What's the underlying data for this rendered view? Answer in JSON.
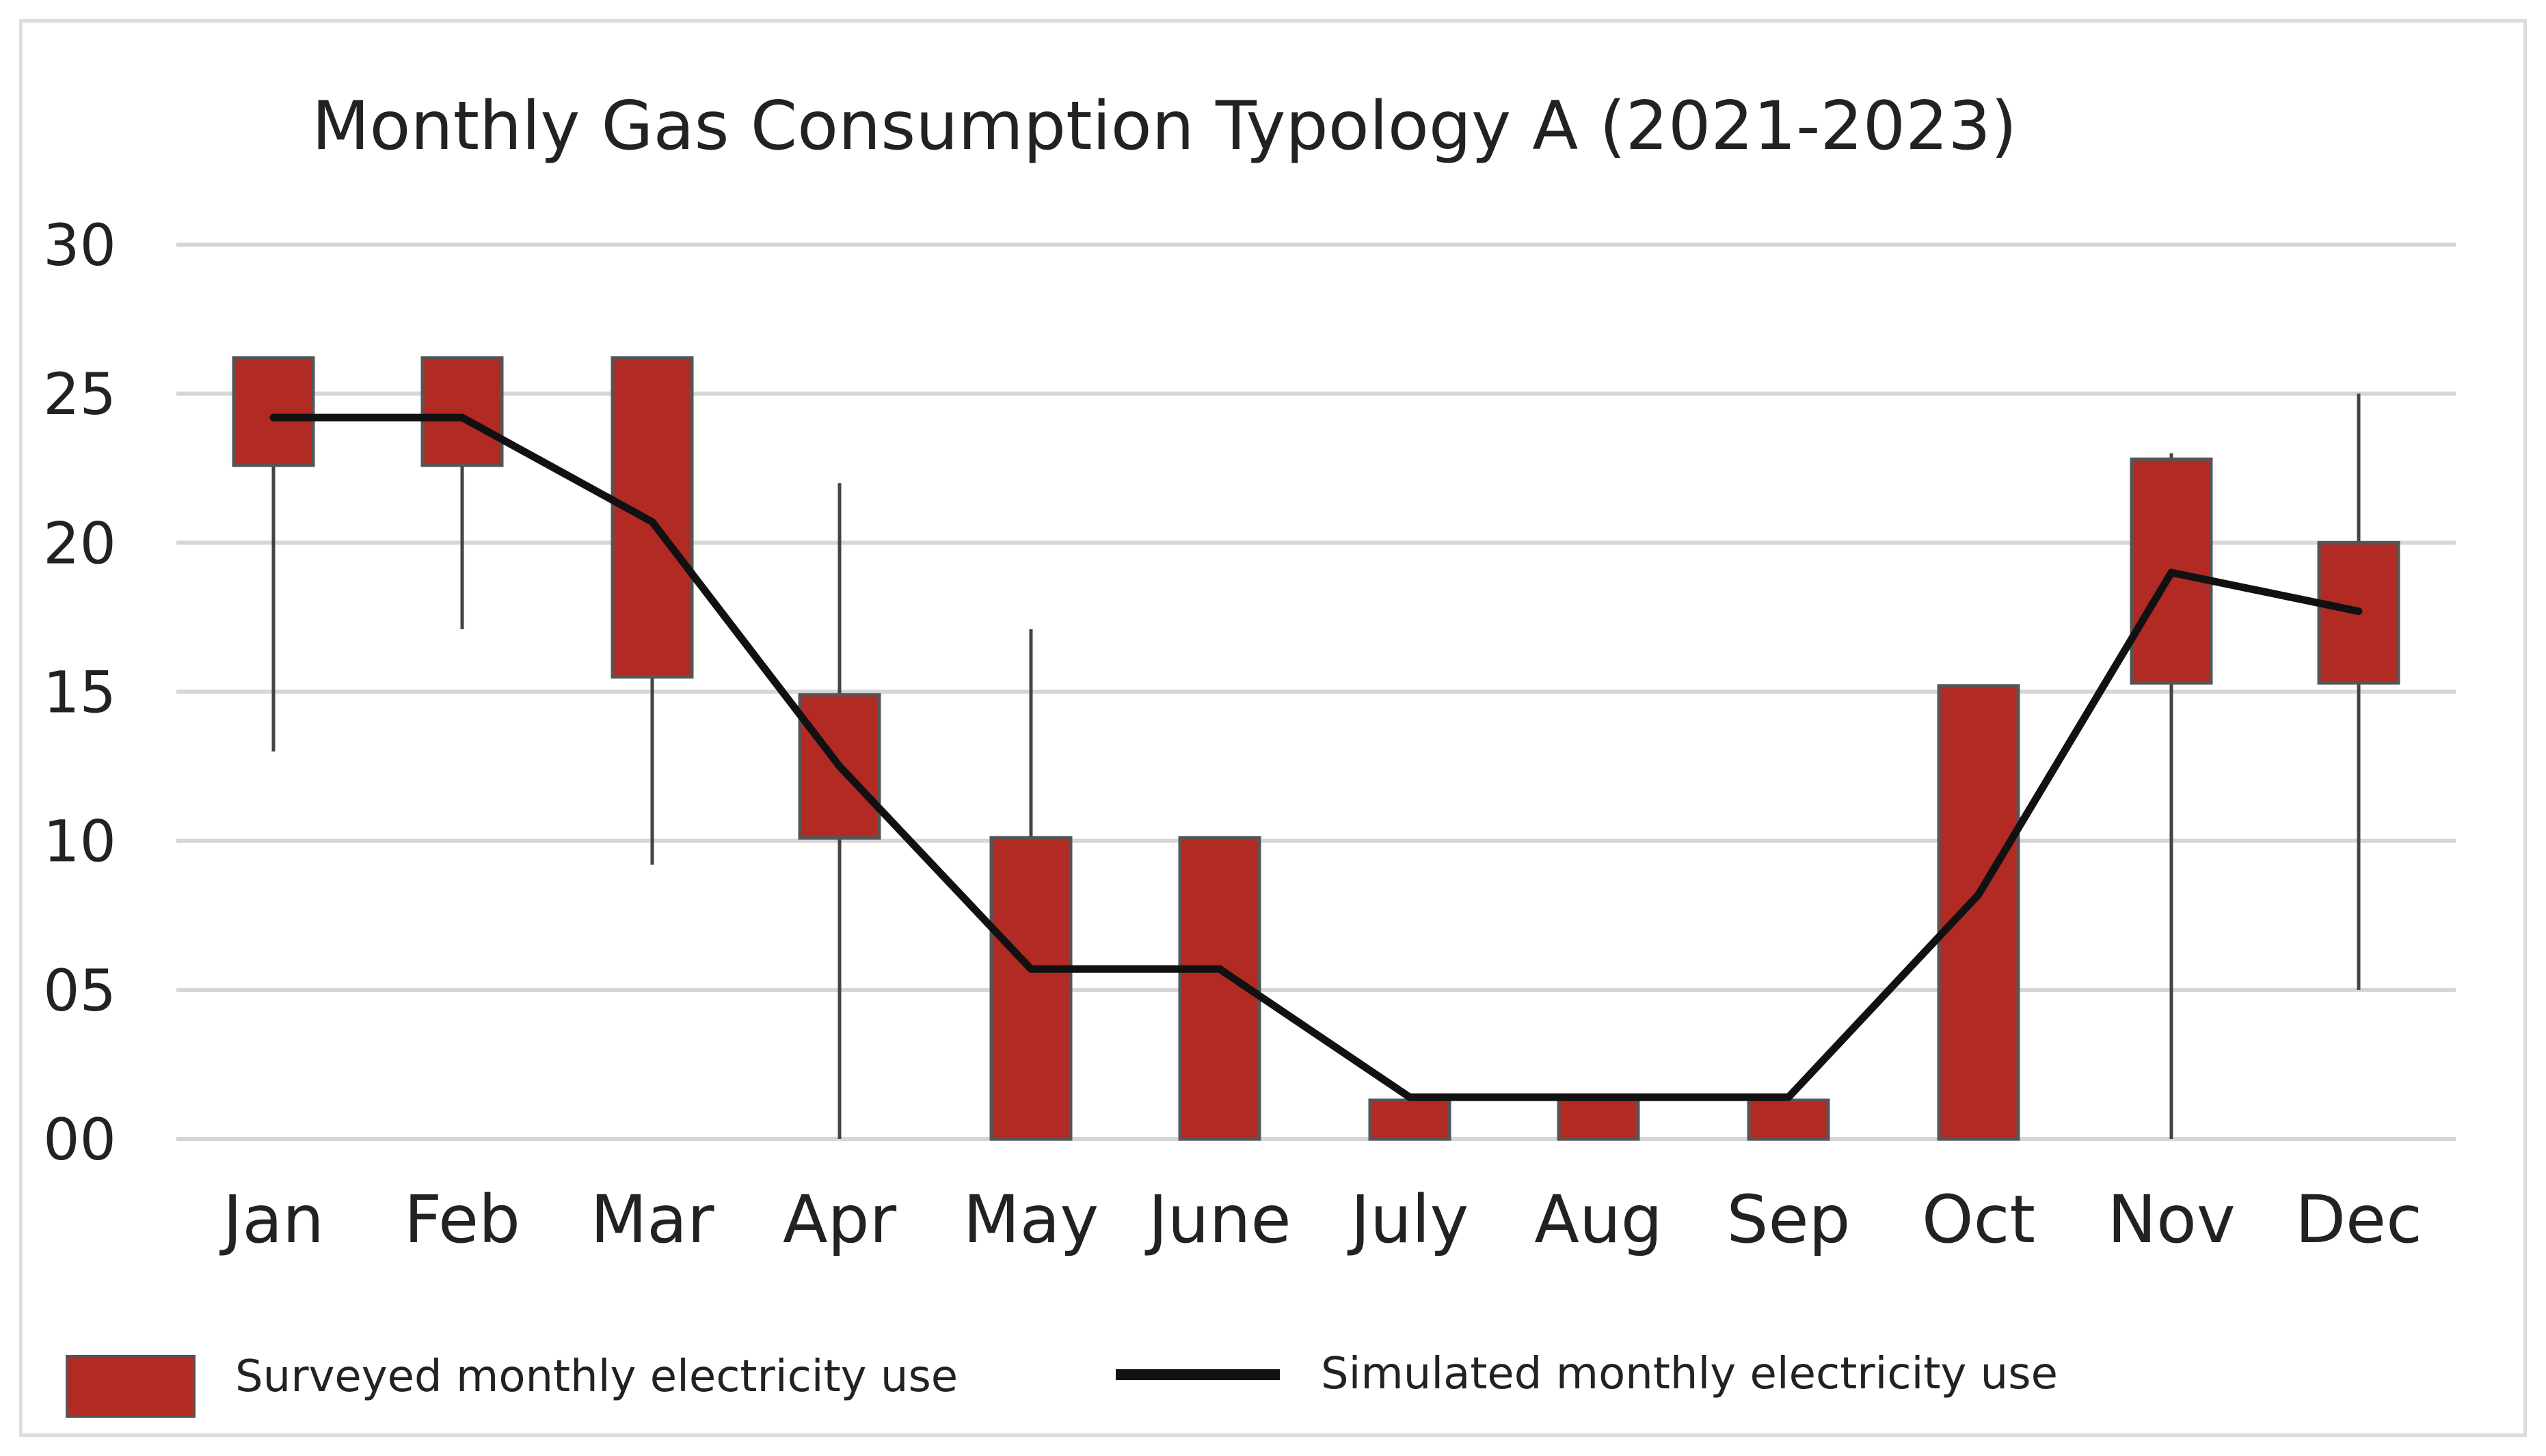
{
  "chart_data": {
    "type": "box-line",
    "title": "Monthly Gas Consumption Typology A (2021-2023)",
    "xlabel": "",
    "ylabel": "",
    "ylim": [
      0,
      30
    ],
    "yticks": [
      0,
      5,
      10,
      15,
      20,
      25,
      30
    ],
    "ytick_labels": [
      "00",
      "05",
      "10",
      "15",
      "20",
      "25",
      "30"
    ],
    "grid": true,
    "categories": [
      "Jan",
      "Feb",
      "Mar",
      "Apr",
      "May",
      "June",
      "July",
      "Aug",
      "Sep",
      "Oct",
      "Nov",
      "Dec"
    ],
    "series": [
      {
        "name": "Surveyed monthly electricity use",
        "kind": "box",
        "color": "#b22a24",
        "box_low": [
          22.6,
          22.6,
          15.5,
          10.1,
          0,
          0,
          0,
          0,
          0,
          0,
          15.3,
          15.3
        ],
        "box_high": [
          26.2,
          26.2,
          26.2,
          14.9,
          10.1,
          10.1,
          1.3,
          1.3,
          1.3,
          15.2,
          22.8,
          20.0
        ],
        "whisker_min": [
          13.0,
          17.1,
          9.2,
          0,
          0,
          0,
          0,
          0,
          0,
          0,
          0,
          5.0
        ],
        "whisker_max": [
          26.2,
          26.2,
          26.2,
          22.0,
          17.1,
          10.1,
          1.3,
          1.3,
          1.3,
          15.2,
          23.0,
          25.0
        ]
      },
      {
        "name": "Simulated monthly electricity use",
        "kind": "line",
        "color": "#111111",
        "values": [
          24.2,
          24.2,
          20.7,
          12.5,
          5.7,
          5.7,
          1.4,
          1.4,
          1.4,
          8.2,
          19.0,
          17.7
        ]
      }
    ],
    "legend_position": "bottom"
  }
}
